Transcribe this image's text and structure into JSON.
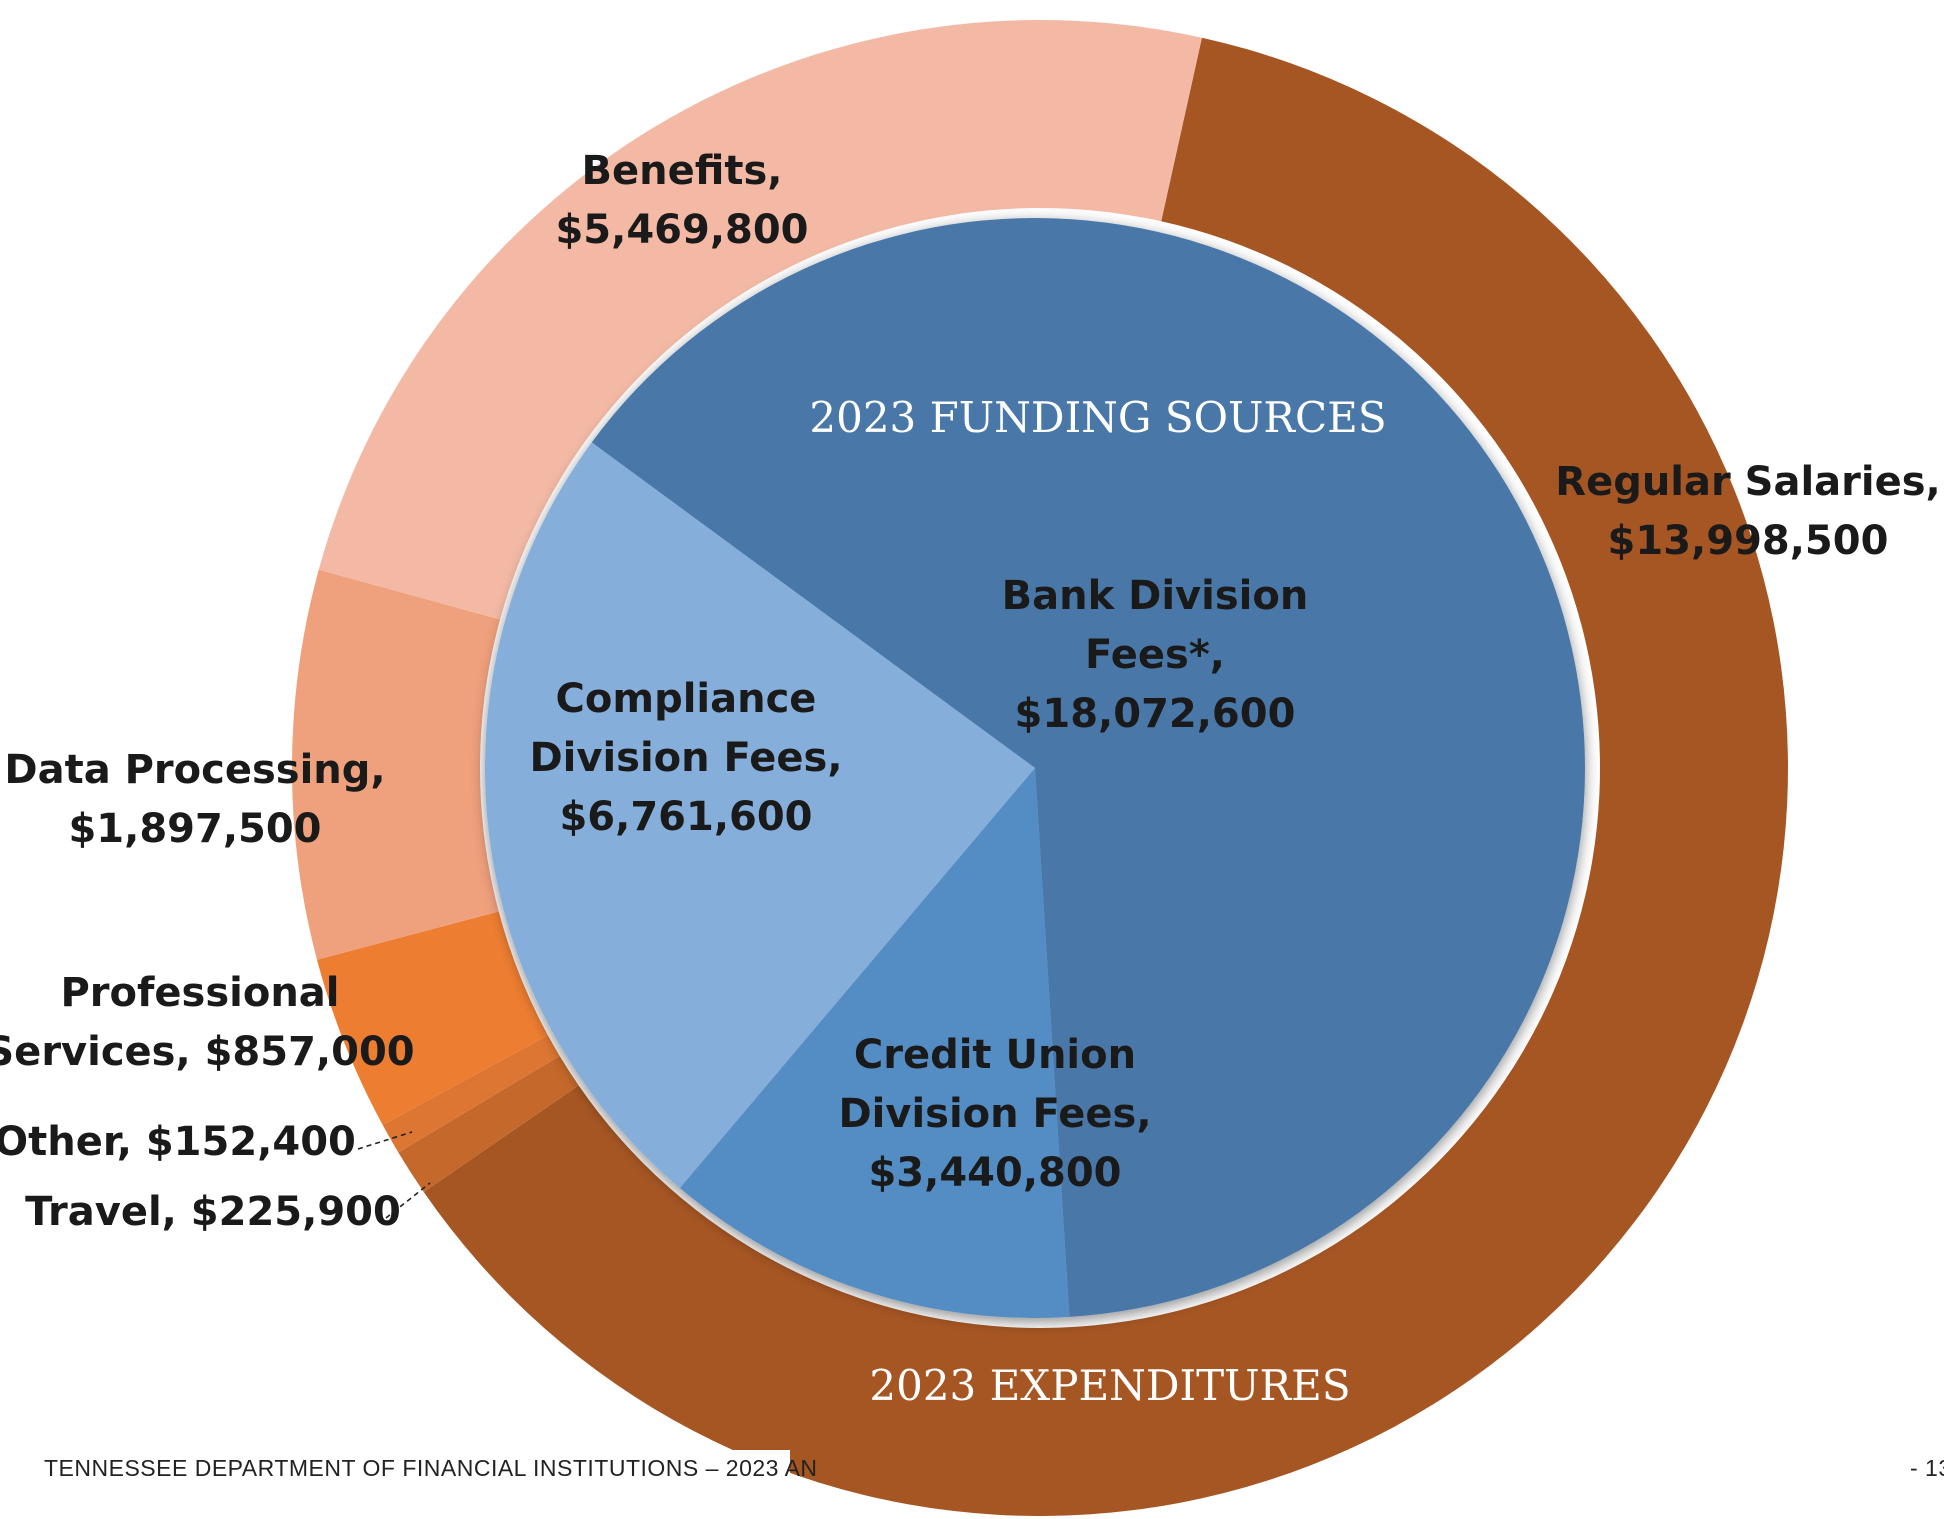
{
  "chart_data": [
    {
      "type": "pie",
      "variant": "donut",
      "ring": "outer",
      "title": "2023 EXPENDITURES",
      "slices": [
        {
          "name": "Regular Salaries",
          "value": 13998500,
          "label": [
            "Regular Salaries,",
            "$13,998,500"
          ],
          "color": "#a65623"
        },
        {
          "name": "Travel",
          "value": 225900,
          "label": [
            "Travel,  $225,900"
          ],
          "color": "#c4682b"
        },
        {
          "name": "Other",
          "value": 152400,
          "label": [
            "Other,  $152,400"
          ],
          "color": "#dd7632"
        },
        {
          "name": "Professional Services",
          "value": 857000,
          "label": [
            "Professional",
            "Services,  $857,000"
          ],
          "color": "#ed7d31"
        },
        {
          "name": "Data Processing",
          "value": 1897500,
          "label": [
            "Data Processing,",
            "$1,897,500"
          ],
          "color": "#efa07c"
        },
        {
          "name": "Benefits",
          "value": 5469800,
          "label": [
            "Benefits,",
            "$5,469,800"
          ],
          "color": "#f3b9a5"
        }
      ]
    },
    {
      "type": "pie",
      "ring": "inner",
      "title": "2023 FUNDING SOURCES",
      "slices": [
        {
          "name": "Bank Division Fees*",
          "value": 18072600,
          "label": [
            "Bank Division",
            "Fees*,",
            "$18,072,600"
          ],
          "color": "#4878a8"
        },
        {
          "name": "Credit Union Division Fees",
          "value": 3440800,
          "label": [
            "Credit Union",
            "Division Fees,",
            "$3,440,800"
          ],
          "color": "#528dc4"
        },
        {
          "name": "Compliance Division Fees",
          "value": 6761600,
          "label": [
            "Compliance",
            "Division Fees,",
            "$6,761,600"
          ],
          "color": "#85aedb"
        }
      ]
    }
  ],
  "footer": {
    "left": "TENNESSEE DEPARTMENT OF FINANCIAL INSTITUTIONS – 2023 AN",
    "right": "- 13"
  }
}
